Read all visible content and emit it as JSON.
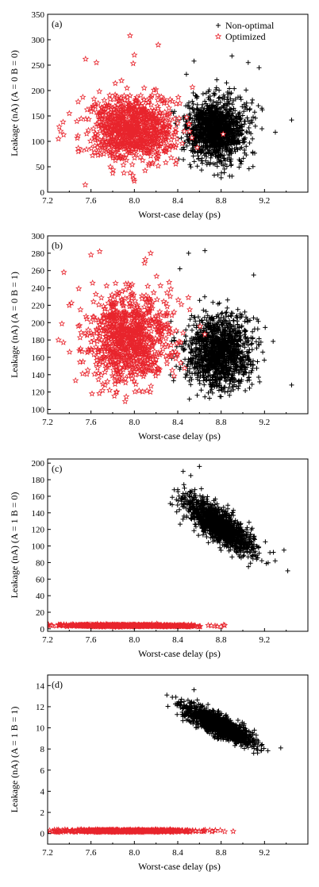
{
  "chart_data": [
    {
      "type": "scatter",
      "panel_label": "(a)",
      "xlabel": "Worst-case delay (ps)",
      "ylabel": "Leakage (nA) (A = 0 B = 0)",
      "xlim": [
        7.2,
        9.6
      ],
      "ylim": [
        0,
        350
      ],
      "xticks": [
        "7.2",
        "7.6",
        "8.0",
        "8.4",
        "8.8",
        "9.2"
      ],
      "yticks": [
        "0",
        "50",
        "100",
        "150",
        "200",
        "250",
        "300",
        "350"
      ],
      "legend": {
        "position": "top-right",
        "entries": [
          "Non-optimal",
          "Optimized"
        ]
      },
      "series": [
        {
          "name": "Non-optimal",
          "marker": "plus",
          "color": "#000000",
          "cloud": {
            "x_mean": 8.75,
            "x_sd": 0.14,
            "y_mean": 122,
            "y_sd": 30,
            "corr": 0.0,
            "n": 1400
          },
          "x": [
            9.45,
            9.05,
            8.9,
            9.15,
            8.55,
            8.48,
            8.62,
            9.3,
            8.85,
            8.7
          ],
          "y": [
            142,
            255,
            268,
            245,
            258,
            232,
            62,
            118,
            215,
            58
          ]
        },
        {
          "name": "Optimized",
          "marker": "star",
          "color": "#e8242c",
          "cloud": {
            "x_mean": 7.98,
            "x_sd": 0.2,
            "y_mean": 125,
            "y_sd": 33,
            "corr": 0.0,
            "n": 900
          },
          "x": [
            7.96,
            8.22,
            7.55,
            7.32,
            7.4,
            7.65,
            8.0,
            7.3
          ],
          "y": [
            308,
            290,
            262,
            120,
            155,
            255,
            270,
            105
          ]
        }
      ]
    },
    {
      "type": "scatter",
      "panel_label": "(b)",
      "xlabel": "Worst-case delay (ps)",
      "ylabel": "Leakage (nA) (A = 0 B = 1)",
      "xlim": [
        7.2,
        9.6
      ],
      "ylim": [
        95,
        300
      ],
      "xticks": [
        "7.2",
        "7.6",
        "8.0",
        "8.4",
        "8.8",
        "9.2"
      ],
      "yticks": [
        "100",
        "120",
        "140",
        "160",
        "180",
        "200",
        "220",
        "240",
        "260",
        "280",
        "300"
      ],
      "legend": null,
      "series": [
        {
          "name": "Non-optimal",
          "marker": "plus",
          "color": "#000000",
          "cloud": {
            "x_mean": 8.78,
            "x_sd": 0.15,
            "y_mean": 165,
            "y_sd": 20,
            "corr": 0.0,
            "n": 1400
          },
          "x": [
            8.65,
            8.5,
            8.42,
            9.45,
            8.78,
            9.1
          ],
          "y": [
            283,
            280,
            262,
            128,
            122,
            255
          ]
        },
        {
          "name": "Optimized",
          "marker": "star",
          "color": "#e8242c",
          "cloud": {
            "x_mean": 7.95,
            "x_sd": 0.19,
            "y_mean": 182,
            "y_sd": 26,
            "corr": 0.0,
            "n": 900
          },
          "x": [
            7.68,
            7.6,
            8.15,
            7.35,
            7.4,
            7.3
          ],
          "y": [
            282,
            278,
            280,
            258,
            220,
            180
          ]
        }
      ]
    },
    {
      "type": "scatter",
      "panel_label": "(c)",
      "xlabel": "Worst-case delay (ps)",
      "ylabel": "Leakage (nA) (A = 1 B = 0)",
      "xlim": [
        7.2,
        9.6
      ],
      "ylim": [
        -3,
        205
      ],
      "xticks": [
        "7.2",
        "7.6",
        "8.0",
        "8.4",
        "8.8",
        "9.2"
      ],
      "yticks": [
        "0",
        "20",
        "40",
        "60",
        "80",
        "100",
        "120",
        "140",
        "160",
        "180",
        "200"
      ],
      "legend": null,
      "series": [
        {
          "name": "Non-optimal",
          "marker": "plus",
          "color": "#000000",
          "cloud": {
            "x_mean": 8.78,
            "x_sd": 0.15,
            "y_mean": 125,
            "y_sd": 16,
            "corr": -0.8,
            "n": 1400
          },
          "x": [
            8.4,
            8.45,
            8.52,
            8.6,
            9.38,
            9.25
          ],
          "y": [
            168,
            190,
            185,
            196,
            95,
            92
          ]
        },
        {
          "name": "Optimized",
          "marker": "star",
          "color": "#e8242c",
          "cloud": {
            "x_mean": 7.95,
            "x_sd": 0.32,
            "y_mean": 3.8,
            "y_sd": 0.6,
            "corr": -0.2,
            "n": 700
          },
          "x": [
            7.32,
            8.6
          ],
          "y": [
            4.8,
            2.6
          ]
        }
      ]
    },
    {
      "type": "scatter",
      "panel_label": "(d)",
      "xlabel": "Worst-case delay (ps)",
      "ylabel": "Leakage (nA) (A = 1 B = 1)",
      "xlim": [
        7.2,
        9.6
      ],
      "ylim": [
        -1,
        15
      ],
      "xticks": [
        "7.2",
        "7.6",
        "8.0",
        "8.4",
        "8.8",
        "9.2"
      ],
      "yticks": [
        "0",
        "2",
        "4",
        "6",
        "8",
        "10",
        "12",
        "14"
      ],
      "legend": null,
      "series": [
        {
          "name": "Non-optimal",
          "marker": "plus",
          "color": "#000000",
          "cloud": {
            "x_mean": 8.78,
            "x_sd": 0.15,
            "y_mean": 10.2,
            "y_sd": 0.9,
            "corr": -0.82,
            "n": 1400
          },
          "x": [
            8.3,
            8.35,
            8.55,
            9.35,
            9.1
          ],
          "y": [
            13.1,
            12.9,
            13.6,
            8.1,
            7.6
          ]
        },
        {
          "name": "Optimized",
          "marker": "star",
          "color": "#e8242c",
          "cloud": {
            "x_mean": 7.95,
            "x_sd": 0.32,
            "y_mean": 0.25,
            "y_sd": 0.05,
            "corr": 0.0,
            "n": 700
          },
          "x": [
            7.3,
            8.62
          ],
          "y": [
            0.35,
            0.2
          ]
        }
      ]
    }
  ]
}
